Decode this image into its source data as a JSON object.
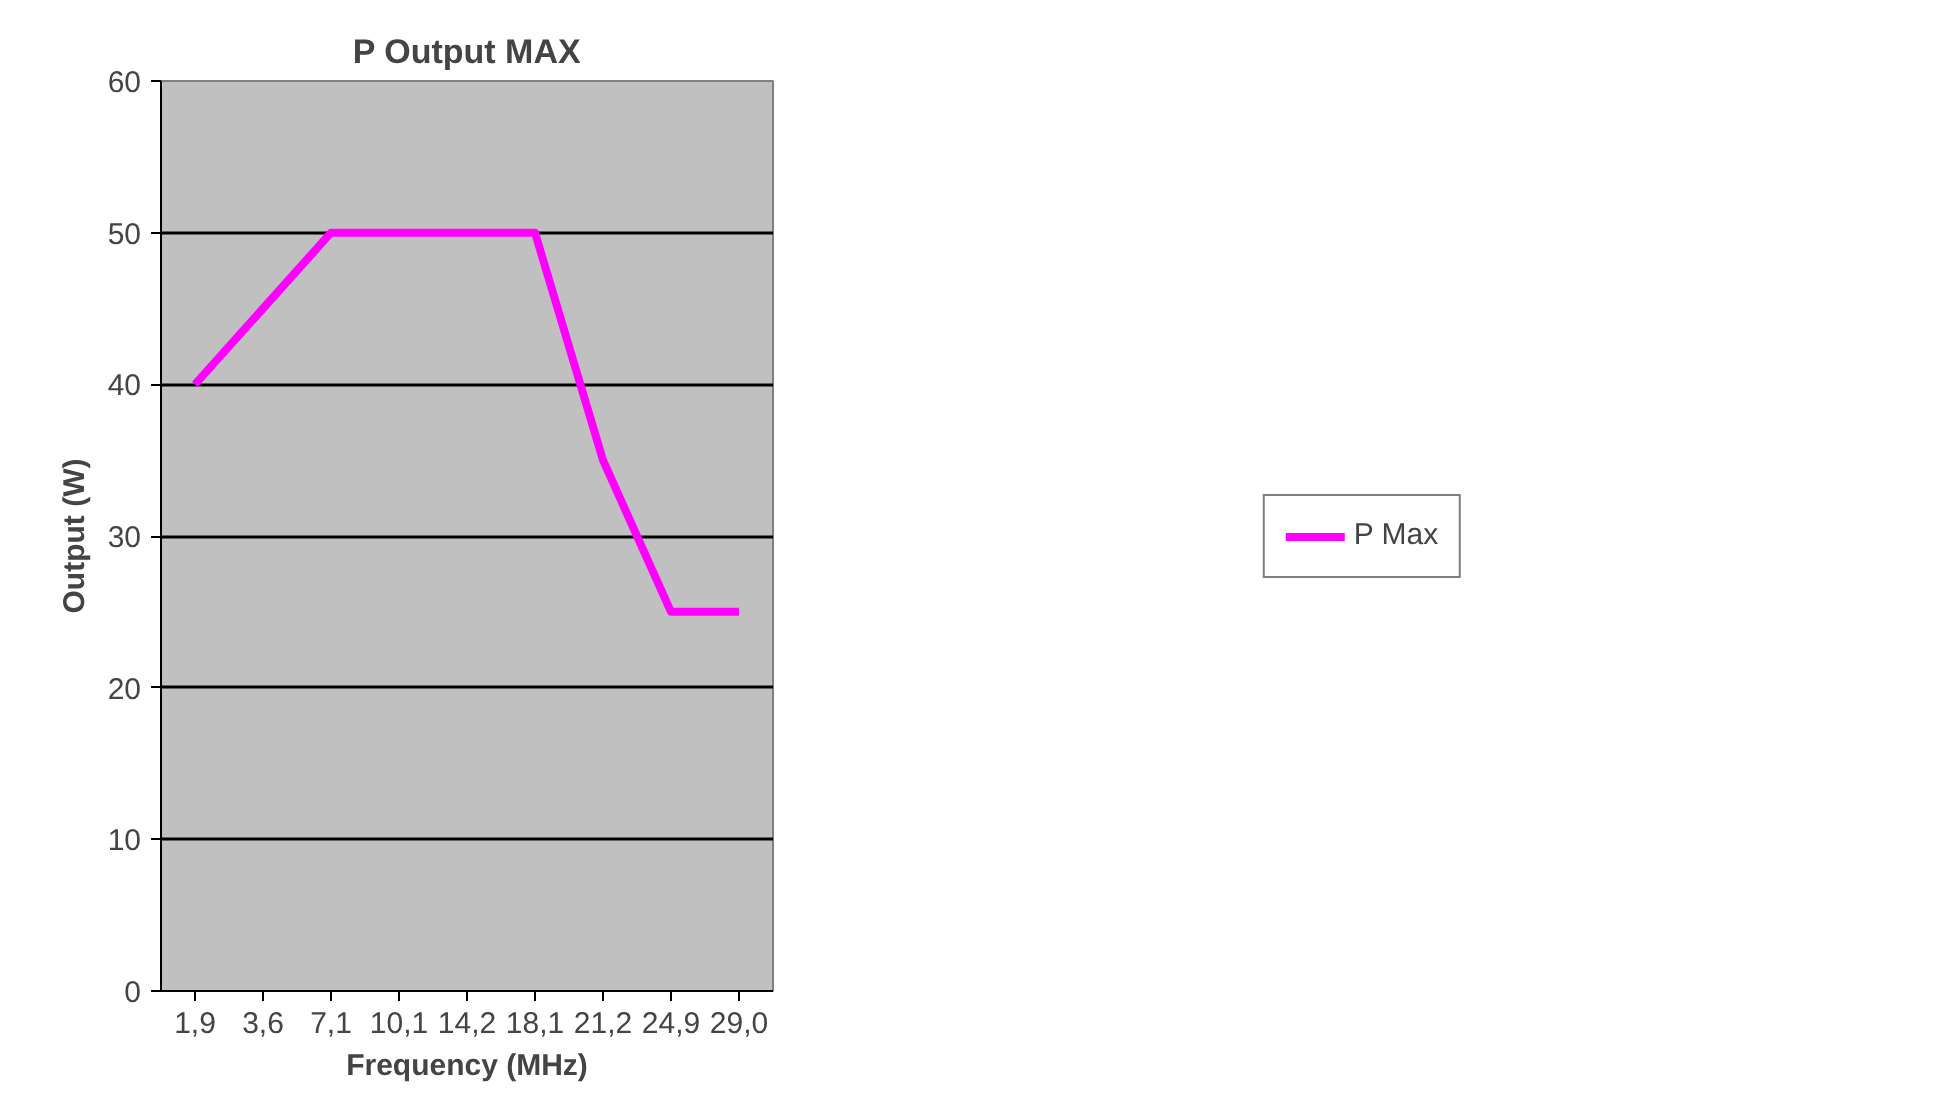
{
  "chart_data": {
    "type": "line",
    "title": "P Output MAX",
    "xlabel": "Frequency (MHz)",
    "ylabel": "Output (W)",
    "categories": [
      "1,9",
      "3,6",
      "7,1",
      "10,1",
      "14,2",
      "18,1",
      "21,2",
      "24,9",
      "29,0"
    ],
    "series": [
      {
        "name": "P Max",
        "color": "#ff00ff",
        "values": [
          40,
          45,
          50,
          50,
          50,
          50,
          35,
          25,
          25
        ]
      }
    ],
    "ylim": [
      0,
      60
    ],
    "yticks": [
      0,
      10,
      20,
      30,
      40,
      50,
      60
    ],
    "grid": "y",
    "legend": "right",
    "marker": "none",
    "line_style": "solid"
  }
}
